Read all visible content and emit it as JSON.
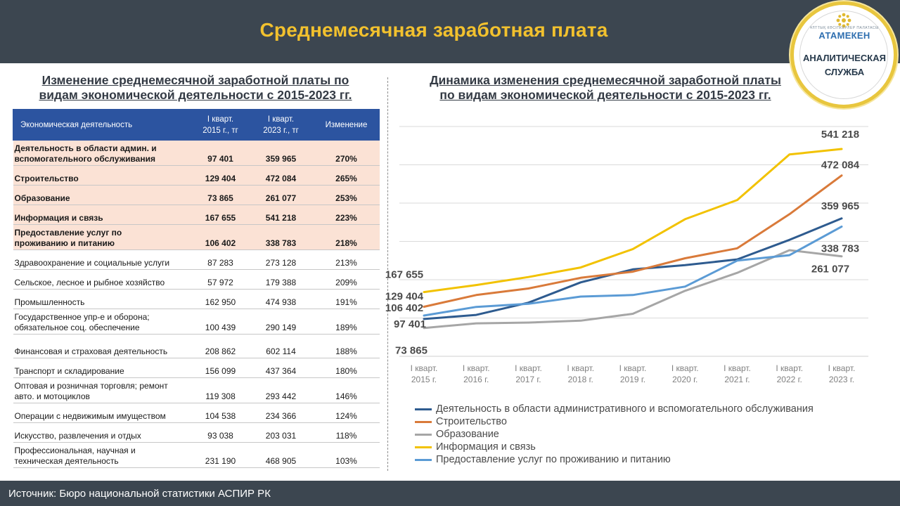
{
  "header": {
    "title": "Среднемесячная заработная плата"
  },
  "logo": {
    "small_text": "ҰЛТТЫҚ КӘСІПКЕРЛЕР ПАЛАТАСЫ",
    "brand": "АТАМЕКЕН",
    "service_line1": "АНАЛИТИЧЕСКАЯ",
    "service_line2": "СЛУЖБА"
  },
  "left": {
    "title_line1": "Изменение среднемесячной заработной платы по",
    "title_line2": "видам экономической деятельности с 2015-2023 гг."
  },
  "table": {
    "headers": [
      "Экономическая деятельность",
      "I кварт.\n2015 г., тг",
      "I кварт.\n2023 г., тг",
      "Изменение"
    ],
    "rows": [
      {
        "name": "Деятельность в области админ. и\nвспомогательного обслуживания",
        "v2015": "97 401",
        "v2023": "359 965",
        "change": "270%",
        "highlight": true
      },
      {
        "name": "Строительство",
        "v2015": "129 404",
        "v2023": "472 084",
        "change": "265%",
        "highlight": true
      },
      {
        "name": "Образование",
        "v2015": "73 865",
        "v2023": "261 077",
        "change": "253%",
        "highlight": true
      },
      {
        "name": "Информация и связь",
        "v2015": "167 655",
        "v2023": "541 218",
        "change": "223%",
        "highlight": true
      },
      {
        "name": "Предоставление услуг по\nпроживанию и питанию",
        "v2015": "106 402",
        "v2023": "338 783",
        "change": "218%",
        "highlight": true
      },
      {
        "name": "Здравоохранение и социальные услуги",
        "v2015": "87 283",
        "v2023": "273 128",
        "change": "213%",
        "highlight": false
      },
      {
        "name": "Сельское, лесное и рыбное хозяйство",
        "v2015": "57 972",
        "v2023": "179 388",
        "change": "209%",
        "highlight": false
      },
      {
        "name": "Промышленность",
        "v2015": "162 950",
        "v2023": "474 938",
        "change": "191%",
        "highlight": false
      },
      {
        "name": "Государственное упр-е и оборона;\nобязательное соц. обеспечение",
        "v2015": "100 439",
        "v2023": "290 149",
        "change": "189%",
        "highlight": false
      },
      {
        "name": "Финансовая и страховая деятельность",
        "v2015": "208 862",
        "v2023": "602 114",
        "change": "188%",
        "highlight": false
      },
      {
        "name": "Транспорт и складирование",
        "v2015": "156 099",
        "v2023": "437 364",
        "change": "180%",
        "highlight": false
      },
      {
        "name": "Оптовая и розничная торговля; ремонт\nавто. и мотоциклов",
        "v2015": "119 308",
        "v2023": "293 442",
        "change": "146%",
        "highlight": false
      },
      {
        "name": "Операции с недвижимым имуществом",
        "v2015": "104 538",
        "v2023": "234 366",
        "change": "124%",
        "highlight": false
      },
      {
        "name": "Искусство, развлечения и отдых",
        "v2015": "93 038",
        "v2023": "203 031",
        "change": "118%",
        "highlight": false
      },
      {
        "name": "Профессиональная, научная и\nтехническая деятельность",
        "v2015": "231 190",
        "v2023": "468 905",
        "change": "103%",
        "highlight": false
      }
    ]
  },
  "right": {
    "title_line1": "Динамика изменения среднемесячной заработной платы",
    "title_line2": "по видам экономической деятельности с 2015-2023 гг."
  },
  "chart_data": {
    "type": "line",
    "title": "Динамика изменения среднемесячной заработной платы по видам экономической деятельности с 2015-2023 гг.",
    "x": [
      "I кварт.\n2015 г.",
      "I кварт.\n2016 г.",
      "I кварт.\n2017 г.",
      "I кварт.\n2018 г.",
      "I кварт.\n2019 г.",
      "I кварт.\n2020 г.",
      "I кварт.\n2021 г.",
      "I кварт.\n2022 г.",
      "I кварт.\n2023 г."
    ],
    "ylim": [
      0,
      600000
    ],
    "grid": true,
    "legend_position": "bottom",
    "series": [
      {
        "name": "Деятельность в области административного и вспомогательного обслуживания",
        "color": "#2e5b8f",
        "values": [
          97401,
          108000,
          140000,
          193000,
          227000,
          238000,
          253000,
          304000,
          359965
        ],
        "start_label": "97 401",
        "end_label": "359 965"
      },
      {
        "name": "Строительство",
        "color": "#d97a3a",
        "values": [
          129404,
          160000,
          177000,
          205000,
          221000,
          256000,
          282000,
          371000,
          472084
        ],
        "start_label": "129 404",
        "end_label": "472 084"
      },
      {
        "name": "Образование",
        "color": "#a6a6a6",
        "values": [
          73865,
          86000,
          88000,
          93000,
          111000,
          171000,
          218000,
          277000,
          261077
        ],
        "start_label": "73 865",
        "end_label": "261 077"
      },
      {
        "name": "Информация и связь",
        "color": "#f2c200",
        "values": [
          167655,
          186000,
          207000,
          232000,
          280000,
          358000,
          408000,
          527000,
          541218
        ],
        "start_label": "167 655",
        "end_label": "541 218"
      },
      {
        "name": "Предоставление услуг по проживанию и питанию",
        "color": "#5b9bd5",
        "values": [
          106402,
          129000,
          137000,
          156000,
          160000,
          182000,
          250000,
          264000,
          338783
        ],
        "start_label": "106 402",
        "end_label": "338 783"
      }
    ]
  },
  "legend": {
    "items": [
      {
        "label": "Деятельность в области административного и вспомогательного обслуживания",
        "color": "#2e5b8f"
      },
      {
        "label": "Строительство",
        "color": "#d97a3a"
      },
      {
        "label": "Образование",
        "color": "#a6a6a6"
      },
      {
        "label": "Информация и связь",
        "color": "#f2c200"
      },
      {
        "label": "Предоставление услуг по проживанию и питанию",
        "color": "#5b9bd5"
      }
    ]
  },
  "footer": {
    "source": "Источник: Бюро национальной статистики АСПИР РК"
  }
}
